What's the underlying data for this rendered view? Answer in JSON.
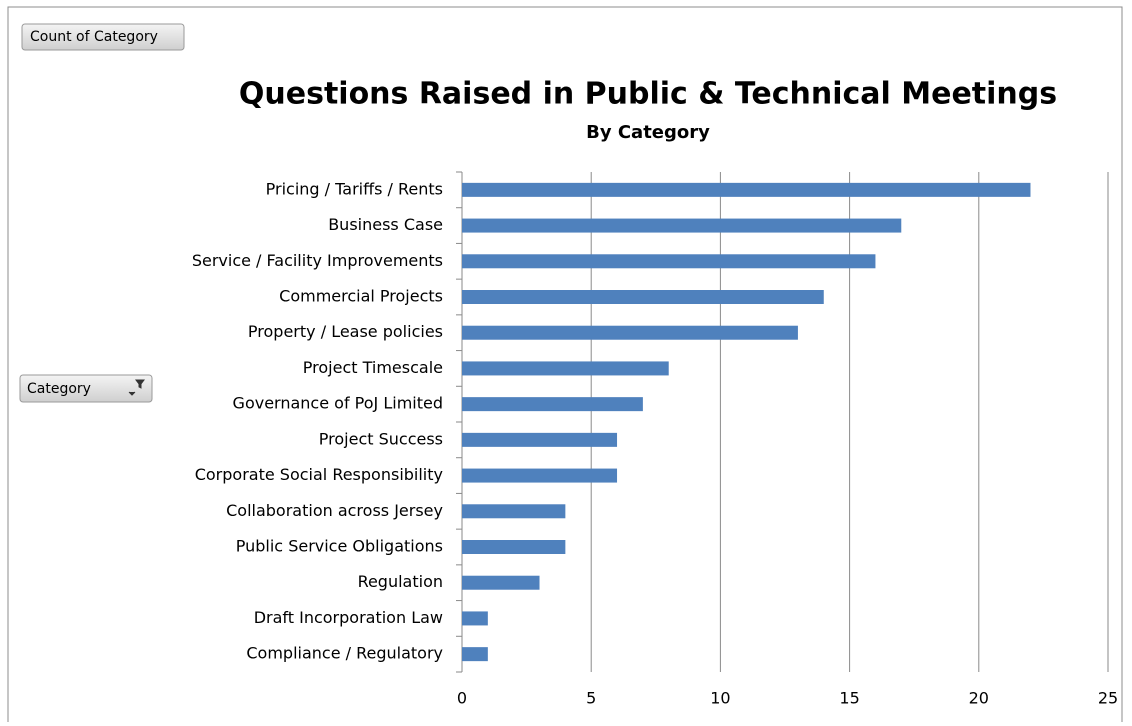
{
  "chart_data": {
    "type": "bar",
    "orientation": "horizontal",
    "title": "Questions Raised in Public & Technical Meetings",
    "subtitle": "By Category",
    "categories": [
      "Pricing / Tariffs / Rents",
      "Business Case",
      "Service / Facility Improvements",
      "Commercial Projects",
      "Property / Lease policies",
      "Project Timescale",
      "Governance of PoJ Limited",
      "Project Success",
      "Corporate Social Responsibility",
      "Collaboration across Jersey",
      "Public Service Obligations",
      "Regulation",
      "Draft Incorporation Law",
      "Compliance / Regulatory"
    ],
    "values": [
      22,
      17,
      16,
      14,
      13,
      8,
      7,
      6,
      6,
      4,
      4,
      3,
      1,
      1
    ],
    "color": "#4f81bd",
    "xlim": [
      0,
      25
    ],
    "xticks": [
      0,
      5,
      10,
      15,
      20,
      25
    ],
    "grid": true
  },
  "field_buttons": {
    "values_field": "Count of Category",
    "axis_field": "Category"
  }
}
